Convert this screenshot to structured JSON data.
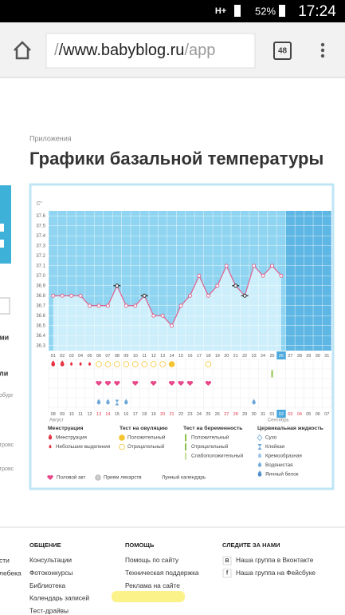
{
  "status_bar": {
    "network": "H+",
    "battery": "52%",
    "time": "17:24"
  },
  "browser": {
    "url_scheme": "/",
    "url_host": "/www.babyblog.ru",
    "url_path": "/app",
    "tabs": "48"
  },
  "breadcrumb": "Приложения",
  "title": "Графики базальной температуры",
  "sidebar": [
    "ми",
    "ли",
    "рбург",
    "тровс",
    "тровс"
  ],
  "chart_data": {
    "type": "line",
    "y_label": "C°",
    "categories": [
      "01",
      "02",
      "03",
      "04",
      "05",
      "06",
      "07",
      "08",
      "09",
      "10",
      "11",
      "12",
      "13",
      "14",
      "15",
      "16",
      "17",
      "18",
      "19",
      "20",
      "21",
      "22",
      "23",
      "24",
      "25",
      "26",
      "27",
      "28",
      "29",
      "30",
      "31"
    ],
    "dates": [
      "08",
      "09",
      "10",
      "11",
      "12",
      "13",
      "14",
      "15",
      "16",
      "17",
      "18",
      "19",
      "20",
      "21",
      "22",
      "23",
      "24",
      "25",
      "26",
      "27",
      "28",
      "29",
      "30",
      "31",
      "01",
      "02",
      "03",
      "04",
      "05",
      "06",
      "07"
    ],
    "date_colors": [
      "#555",
      "#555",
      "#555",
      "#555",
      "#555",
      "#e03a4a",
      "#e03a4a",
      "#555",
      "#555",
      "#555",
      "#555",
      "#555",
      "#e03a4a",
      "#e03a4a",
      "#555",
      "#555",
      "#555",
      "#555",
      "#555",
      "#e03a4a",
      "#e03a4a",
      "#555",
      "#555",
      "#555",
      "#555",
      "#555",
      "#e03a4a",
      "#e03a4a",
      "#555",
      "#555",
      "#555"
    ],
    "months": [
      "Август",
      "Сентябрь"
    ],
    "current_index": 25,
    "series": [
      {
        "color": "#e0608c",
        "values": [
          36.8,
          36.8,
          36.8,
          36.8,
          36.7,
          36.7,
          36.7,
          36.9,
          36.7,
          36.7,
          36.8,
          36.6,
          36.6,
          36.5,
          36.7,
          36.8,
          37,
          36.8,
          36.9,
          37.1,
          36.9,
          36.8,
          37.1,
          37,
          37.1,
          37,
          null,
          null,
          null,
          null,
          null
        ]
      }
    ],
    "outlined": [
      7,
      10,
      20,
      21
    ],
    "ylim": [
      36.25,
      37.65
    ],
    "yticks": [
      36.3,
      36.4,
      36.5,
      36.6,
      36.7,
      36.8,
      36.9,
      {
        "value": 37,
        "label": "37.0"
      },
      37.1,
      37.2,
      37.3,
      37.4,
      37.5,
      37.6
    ],
    "grid": true,
    "colors": {
      "plot": "#8fd4f1",
      "fill": "#cdeefb",
      "future": "#5db6e3",
      "highlight": "#4aa8dc"
    },
    "symbols": {
      "menstruation": [
        "heavy",
        "heavy",
        "light",
        "light",
        "light",
        null,
        null,
        null,
        null,
        null,
        null,
        null,
        null,
        null,
        null,
        null,
        null,
        null,
        null,
        null,
        null,
        null,
        null,
        null,
        null,
        null,
        null,
        null,
        null,
        null,
        null
      ],
      "ovulation": [
        null,
        null,
        null,
        null,
        null,
        "neg",
        "neg",
        "neg",
        "neg",
        "neg",
        "neg",
        "neg",
        "neg",
        "pos",
        null,
        null,
        null,
        "neg",
        null,
        null,
        null,
        null,
        null,
        null,
        null,
        null,
        null,
        null,
        null,
        null,
        null
      ],
      "pregnancy": [
        null,
        null,
        null,
        null,
        null,
        null,
        null,
        null,
        null,
        null,
        null,
        null,
        null,
        null,
        null,
        null,
        null,
        null,
        null,
        null,
        null,
        null,
        null,
        null,
        "pos",
        null,
        null,
        null,
        null,
        null,
        null
      ],
      "intercourse": [
        null,
        null,
        null,
        null,
        null,
        "yes",
        "yes",
        "yes",
        null,
        "yes",
        null,
        "yes",
        null,
        "yes",
        "yes",
        "yes",
        null,
        "yes",
        null,
        null,
        null,
        null,
        null,
        null,
        null,
        null,
        null,
        null,
        null,
        null,
        null
      ],
      "cervical": [
        null,
        null,
        null,
        null,
        null,
        "watery",
        "watery",
        "sticky",
        "watery",
        null,
        null,
        null,
        null,
        null,
        null,
        null,
        null,
        null,
        null,
        null,
        null,
        null,
        "watery",
        null,
        null,
        null,
        null,
        null,
        null,
        null,
        null
      ]
    }
  },
  "legend": {
    "groups": [
      {
        "title": "Менструация",
        "items": [
          "Менструация",
          "Небольшие выделения"
        ]
      },
      {
        "title": "Тест на овуляцию",
        "items": [
          "Положительный",
          "Отрицательный"
        ]
      },
      {
        "title": "Тест на беременность",
        "items": [
          "Положительный",
          "Отрицательный",
          "Слабоположительный"
        ]
      },
      {
        "title": "Цервикальная жидкость",
        "items": [
          "Сухо",
          "Клейкая",
          "Кремообразная",
          "Водянистая",
          "Яичный белок"
        ]
      }
    ],
    "extra": [
      "Половой акт",
      "Прием лекарств",
      "Лунный календарь"
    ]
  },
  "footer": {
    "cropped": [
      "сти",
      "лебека"
    ],
    "columns": [
      {
        "title": "ОБЩЕНИЕ",
        "links": [
          "Консультации",
          "Фотоконкурсы",
          "Библиотека",
          "Календарь записей",
          "Тест-драйвы"
        ]
      },
      {
        "title": "ПОМОЩЬ",
        "links": [
          "Помощь по сайту",
          "Техническая поддержка",
          "Реклама на сайте"
        ]
      },
      {
        "title": "СЛЕДИТЕ ЗА НАМИ",
        "links": [
          "Наша группа в Вконтакте",
          "Наша группа на Фейсбуке"
        ],
        "icons": [
          "В",
          "f"
        ]
      }
    ]
  }
}
